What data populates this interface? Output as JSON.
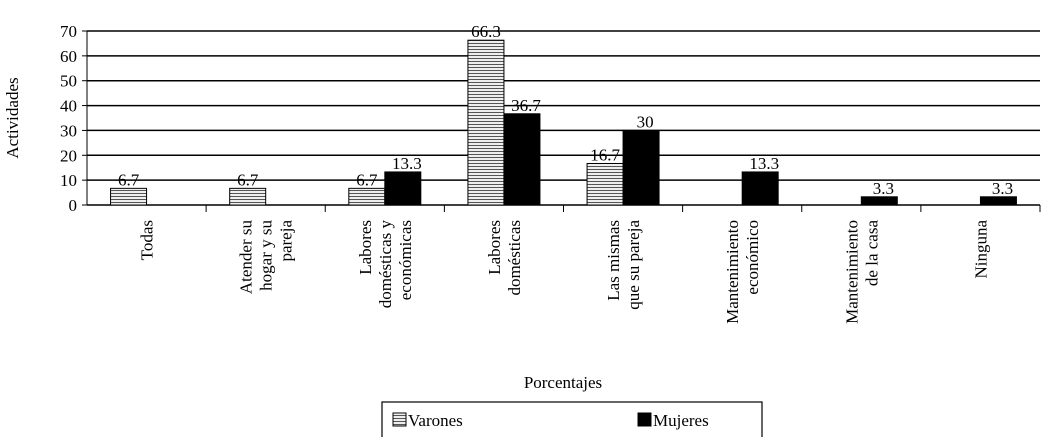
{
  "chart_data": {
    "type": "bar",
    "categories": [
      "Todas",
      "Atender su hogar y su pareja",
      "Labores domésticas y económicas",
      "Labores domésticas",
      "Las mismas que su pareja",
      "Mantenimiento económico",
      "Mantenimiento de la casa",
      "Ninguna"
    ],
    "series": [
      {
        "name": "Varones",
        "color": "#ffffff",
        "pattern": "horizontal-hatch",
        "values": [
          6.7,
          6.7,
          6.7,
          66.3,
          16.7,
          null,
          null,
          null
        ]
      },
      {
        "name": "Mujeres",
        "color": "#000000",
        "values": [
          null,
          null,
          13.3,
          36.7,
          30,
          13.3,
          3.3,
          3.3
        ]
      }
    ],
    "ylabel": "Actividades",
    "xlabel": "Porcentajes",
    "ylim": [
      0,
      70
    ],
    "yticks": [
      0,
      10,
      20,
      30,
      40,
      50,
      60,
      70
    ],
    "grid": true,
    "legend": "bottom"
  }
}
